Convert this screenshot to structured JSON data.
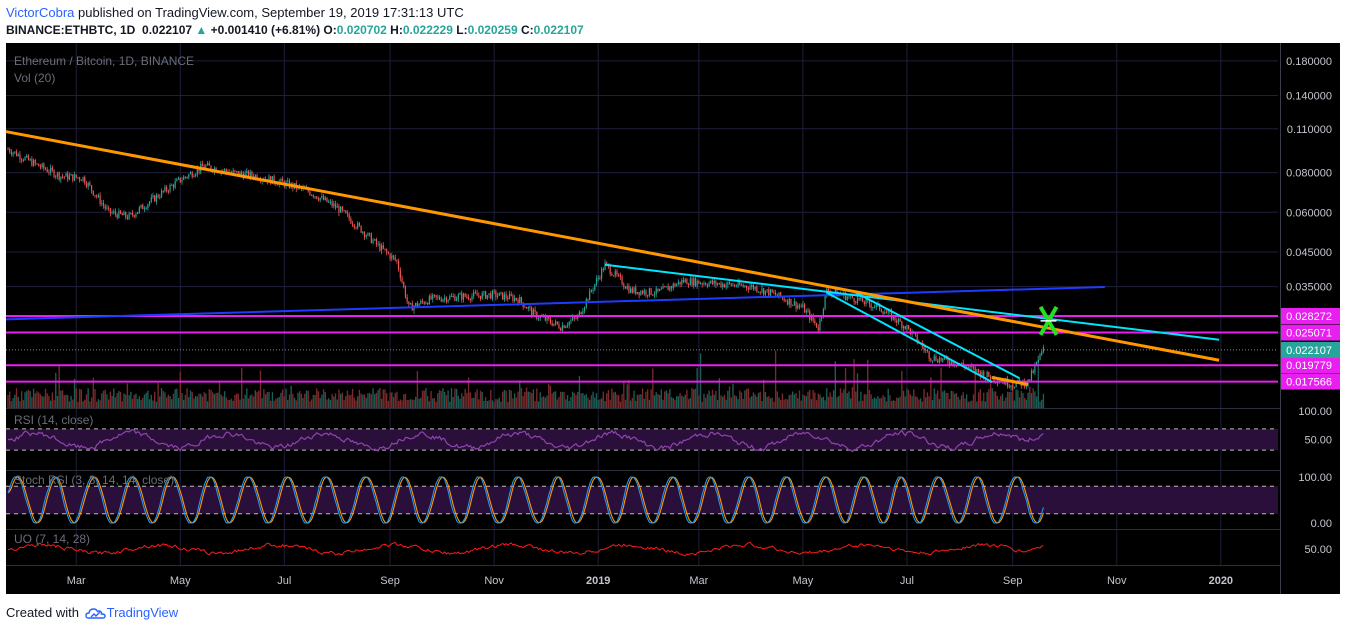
{
  "header": {
    "author": "VictorCobra",
    "published_text": "published on TradingView.com, September 19, 2019 17:31:13 UTC",
    "symbol_line_prefix": "BINANCE:ETHBTC, 1D",
    "last": "0.022107",
    "change_arrow": "▲",
    "change": "+0.001410 (+6.81%)",
    "o_label": "O:",
    "o_value": "0.020702",
    "h_label": "H:",
    "h_value": "0.022229",
    "l_label": "L:",
    "l_value": "0.020259",
    "c_label": "C:",
    "c_value": "0.022107"
  },
  "footer": {
    "created_with": "Created with",
    "brand": "TradingView",
    "logo_icon": "tradingview-cloud-icon"
  },
  "chart_data": {
    "type": "candlestick",
    "title": "Ethereum / Bitcoin, 1D, BINANCE",
    "symbol": "BINANCE:ETHBTC",
    "interval": "1D",
    "volume_label": "Vol (20)",
    "scale": "log",
    "ylim": [
      0.0145,
      0.205
    ],
    "price_ticks": [
      "0.180000",
      "0.140000",
      "0.110000",
      "0.080000",
      "0.060000",
      "0.045000",
      "0.035000"
    ],
    "price_tick_values": [
      0.18,
      0.14,
      0.11,
      0.08,
      0.06,
      0.045,
      0.035
    ],
    "horizontal_levels": [
      {
        "value": 0.028272,
        "label": "0.028272",
        "color": "#e91ef0"
      },
      {
        "value": 0.025071,
        "label": "0.025071",
        "color": "#e91ef0"
      },
      {
        "value": 0.019779,
        "label": "0.019779",
        "color": "#e91ef0"
      },
      {
        "value": 0.017566,
        "label": "0.017566",
        "color": "#e91ef0"
      }
    ],
    "last_price": {
      "value": 0.022107,
      "label": "0.022107",
      "color": "#26a69a"
    },
    "x_ticks": [
      "Mar",
      "May",
      "Jul",
      "Sep",
      "Nov",
      "2019",
      "Mar",
      "May",
      "Jul",
      "Sep",
      "Nov",
      "2020"
    ],
    "x_tick_dates": [
      "2018-03-01",
      "2018-05-01",
      "2018-07-01",
      "2018-09-01",
      "2018-11-01",
      "2019-01-01",
      "2019-03-01",
      "2019-05-01",
      "2019-07-01",
      "2019-09-01",
      "2019-11-01",
      "2020-01-01"
    ],
    "price_path": [
      [
        "2018-01-20",
        0.095
      ],
      [
        "2018-02-05",
        0.085
      ],
      [
        "2018-02-20",
        0.078
      ],
      [
        "2018-03-05",
        0.077
      ],
      [
        "2018-03-20",
        0.06
      ],
      [
        "2018-04-01",
        0.058
      ],
      [
        "2018-04-15",
        0.066
      ],
      [
        "2018-05-01",
        0.076
      ],
      [
        "2018-05-15",
        0.084
      ],
      [
        "2018-06-01",
        0.08
      ],
      [
        "2018-06-15",
        0.078
      ],
      [
        "2018-07-01",
        0.074
      ],
      [
        "2018-07-15",
        0.07
      ],
      [
        "2018-08-01",
        0.062
      ],
      [
        "2018-08-15",
        0.053
      ],
      [
        "2018-08-25",
        0.047
      ],
      [
        "2018-09-05",
        0.042
      ],
      [
        "2018-09-12",
        0.03
      ],
      [
        "2018-09-25",
        0.032
      ],
      [
        "2018-10-10",
        0.0325
      ],
      [
        "2018-11-01",
        0.033
      ],
      [
        "2018-11-15",
        0.032
      ],
      [
        "2018-11-25",
        0.0285
      ],
      [
        "2018-12-10",
        0.0262
      ],
      [
        "2018-12-20",
        0.028
      ],
      [
        "2018-12-28",
        0.034
      ],
      [
        "2019-01-05",
        0.041
      ],
      [
        "2019-01-20",
        0.034
      ],
      [
        "2019-02-05",
        0.0335
      ],
      [
        "2019-02-20",
        0.0365
      ],
      [
        "2019-03-05",
        0.036
      ],
      [
        "2019-04-01",
        0.035
      ],
      [
        "2019-04-15",
        0.033
      ],
      [
        "2019-05-01",
        0.03
      ],
      [
        "2019-05-10",
        0.026
      ],
      [
        "2019-05-15",
        0.034
      ],
      [
        "2019-06-01",
        0.032
      ],
      [
        "2019-06-15",
        0.03
      ],
      [
        "2019-07-01",
        0.026
      ],
      [
        "2019-07-15",
        0.021
      ],
      [
        "2019-08-01",
        0.02
      ],
      [
        "2019-08-15",
        0.0185
      ],
      [
        "2019-09-01",
        0.0172
      ],
      [
        "2019-09-10",
        0.0175
      ],
      [
        "2019-09-19",
        0.0221
      ]
    ],
    "indicators": [
      {
        "name": "RSI (14, close)",
        "ticks": [
          "100.00",
          "50.00"
        ],
        "levels": [
          70,
          30
        ]
      },
      {
        "name": "Stoch RSI (3, 3, 14, 14, close)",
        "ticks": [
          "100.00",
          "0.00"
        ],
        "levels": [
          80,
          20
        ],
        "series": [
          "%K",
          "%D"
        ]
      },
      {
        "name": "UO (7, 14, 28)",
        "ticks": [
          "50.00"
        ]
      }
    ],
    "drawings": {
      "orange_trendlines": [
        [
          [
            "2018-01-10",
            0.11
          ],
          [
            "2019-12-31",
            0.0205
          ]
        ],
        [
          [
            "2019-08-20",
            0.0181
          ],
          [
            "2019-09-10",
            0.0172
          ]
        ]
      ],
      "blue_line": [
        [
          "2018-01-10",
          0.0275
        ],
        [
          "2019-10-25",
          0.0349
        ]
      ],
      "cyan_lines": [
        [
          [
            "2019-01-05",
            0.041
          ],
          [
            "2019-12-31",
            0.0238
          ]
        ],
        [
          [
            "2019-05-15",
            0.0335
          ],
          [
            "2019-08-20",
            0.0175
          ]
        ],
        [
          [
            "2019-06-01",
            0.0335
          ],
          [
            "2019-09-05",
            0.018
          ]
        ]
      ],
      "target_marker": {
        "date": "2019-09-22",
        "value": 0.0265,
        "icon": "green-x-target-icon",
        "color": "#22e022"
      }
    },
    "colors": {
      "background": "#000000",
      "up": "#26a69a",
      "down": "#ef5350",
      "grid": "#1e1f3b",
      "orange": "#ff9800",
      "blue": "#1e3cff",
      "cyan": "#00e5ff",
      "magenta": "#e91ef0",
      "rsi": "#8e44ad",
      "stoch_k": "#2196f3",
      "stoch_d": "#ff9800",
      "uo": "#ff1a1a"
    }
  }
}
